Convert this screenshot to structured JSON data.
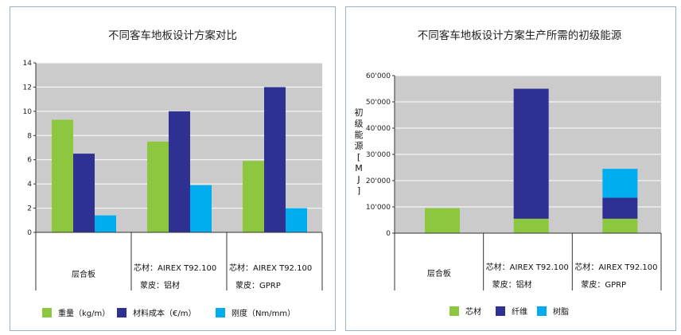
{
  "colors": {
    "plot_bg": "#cbcbcb",
    "green": "#8dc63f",
    "navy": "#2e3192",
    "cyan": "#00aeef",
    "axis": "#333333",
    "grid": "#ffffff"
  },
  "chart_data": [
    {
      "type": "bar",
      "title": "不同客车地板设计方案对比",
      "ylim": [
        0,
        14
      ],
      "yticks": [
        "0",
        "2",
        "4",
        "6",
        "8",
        "10",
        "12",
        "14"
      ],
      "categories": [
        {
          "line1": "层合板",
          "line2": ""
        },
        {
          "line1": "芯材：AIREX T92.100",
          "line2": "蒙皮：铝材"
        },
        {
          "line1": "芯材：AIREX T92.100",
          "line2": "蒙皮：GPRP"
        }
      ],
      "series": [
        {
          "name": "重量（kg/m）",
          "color": "#8dc63f",
          "values": [
            9.3,
            7.5,
            5.9
          ]
        },
        {
          "name": "材料成本（€/m）",
          "color": "#2e3192",
          "values": [
            6.5,
            10.0,
            12.0
          ]
        },
        {
          "name": "刚度（Nm/mm）",
          "color": "#00aeef",
          "values": [
            1.4,
            3.9,
            2.0
          ]
        }
      ],
      "legend": "bottom",
      "grid": true
    },
    {
      "type": "bar",
      "stacked": true,
      "title": "不同客车地板设计方案生产所需的初级能源",
      "ylabel": "初级能源[MJ]",
      "ylim": [
        0,
        60000
      ],
      "yticks": [
        "0",
        "10'000",
        "20'000",
        "30'000",
        "40'000",
        "50'000",
        "60'000"
      ],
      "categories": [
        {
          "line1": "层合板",
          "line2": ""
        },
        {
          "line1": "芯材：AIREX T92.100",
          "line2": "蒙皮：铝材"
        },
        {
          "line1": "芯材：AIREX T92.100",
          "line2": "蒙皮：GPRP"
        }
      ],
      "series": [
        {
          "name": "芯材",
          "color": "#8dc63f",
          "values": [
            9500,
            5500,
            5500
          ]
        },
        {
          "name": "纤维",
          "color": "#2e3192",
          "values": [
            0,
            49500,
            8000
          ]
        },
        {
          "name": "树脂",
          "color": "#00aeef",
          "values": [
            0,
            0,
            11000
          ]
        }
      ],
      "legend": "bottom",
      "grid": true
    }
  ]
}
